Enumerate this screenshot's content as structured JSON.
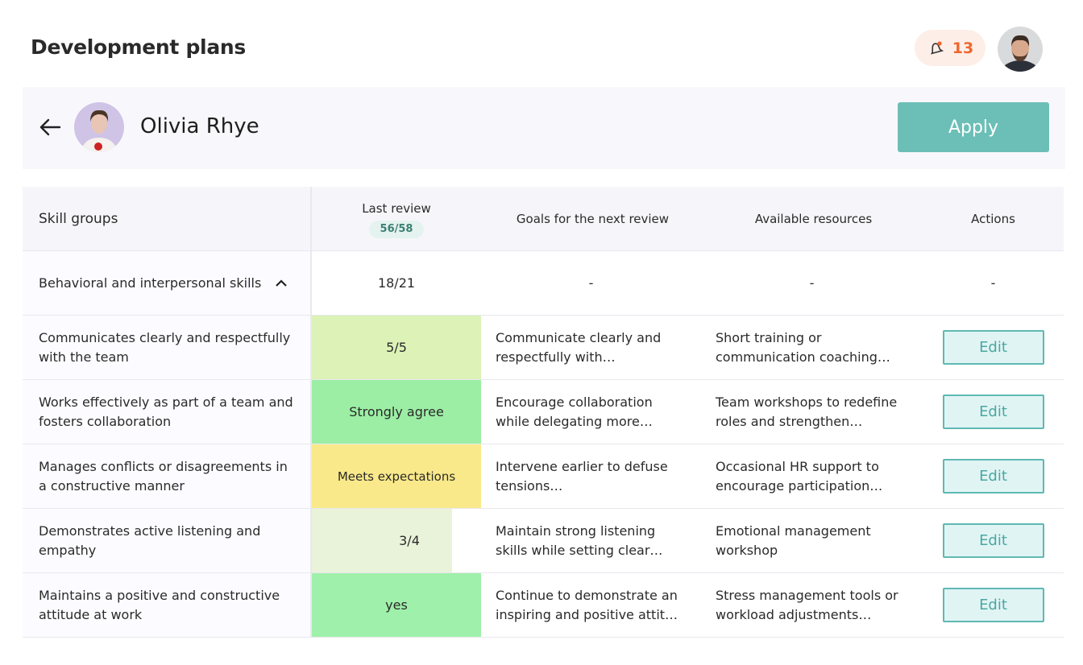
{
  "header": {
    "title": "Development plans",
    "notification_count": 13
  },
  "person": {
    "name": "Olivia Rhye",
    "apply_button": "Apply"
  },
  "table": {
    "columns": [
      "Skill groups",
      "Last review",
      "Goals for the next review",
      "Available resources",
      "Actions"
    ],
    "total_score": "56/58",
    "group": {
      "name": "Behavioral and interpersonal skills",
      "score": "18/21",
      "goals": "-",
      "resources": "-",
      "actions": "-"
    },
    "rows": [
      [
        "Communicates clearly and respectfully with the team",
        "5/5",
        "Communicate clearly and respectfully with…",
        "Short training or communication coaching…",
        "Edit"
      ],
      [
        "Works effectively as part of a team and fosters collaboration",
        "Strongly agree",
        "Encourage collaboration while delegating more…",
        "Team workshops to redefine roles and strengthen…",
        "Edit"
      ],
      [
        "Manages conflicts or disagreements in a constructive manner",
        "Meets expectations",
        "Intervene earlier to defuse tensions…",
        "Occasional HR support to encourage participation…",
        "Edit"
      ],
      [
        "Demonstrates active listening and empathy",
        "3/4",
        "Maintain strong listening skills while setting clear…",
        "Emotional management workshop",
        "Edit"
      ],
      [
        "Maintains a positive and constructive attitude at work",
        "yes",
        "Continue to demonstrate an inspiring and positive attit…",
        "Stress management tools or workload adjustments…",
        "Edit"
      ]
    ]
  }
}
